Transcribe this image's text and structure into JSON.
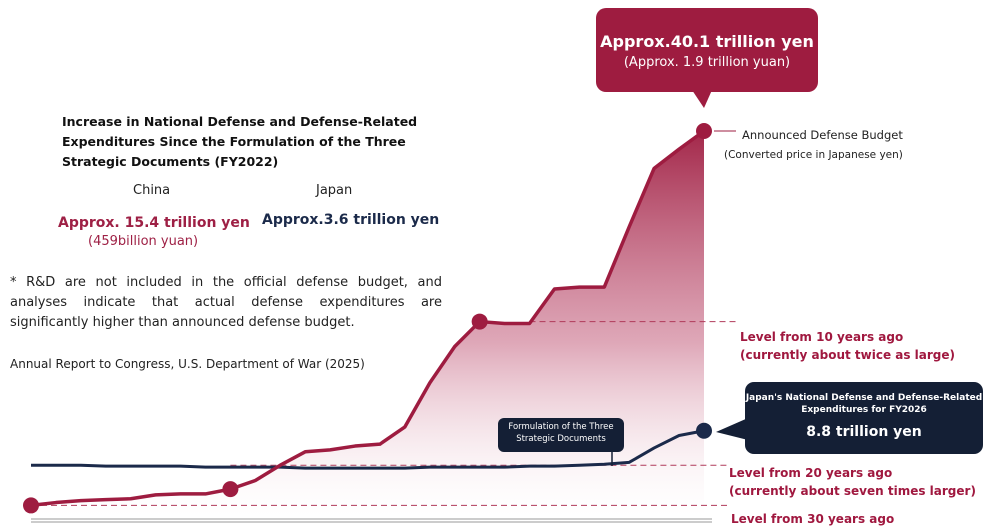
{
  "chart_data": {
    "type": "area",
    "title": "Increase in National Defense and Defense-Related Expenditures Since the Formulation of the Three Strategic Documents (FY2022)",
    "columns": [
      {
        "name": "China",
        "value": "Approx. 15.4 trillion yen",
        "sub": "(459billion yuan)"
      },
      {
        "name": "Japan",
        "value": "Approx.3.6 trillion yen"
      }
    ],
    "note": "* R&D are not included in the official defense budget, and analyses indicate that actual defense expenditures are significantly higher than announced defense budget.",
    "source": "Annual Report to Congress, U.S. Department of War (2025)",
    "series": [
      {
        "name": "Announced Defense Budget",
        "subtitle": "(Converted price in Japanese yen)",
        "color": "#9e1c40",
        "values": [
          1.0,
          1.3,
          1.5,
          1.6,
          1.7,
          2.1,
          2.2,
          2.2,
          2.7,
          3.6,
          5.2,
          6.6,
          6.8,
          7.2,
          7.4,
          9.2,
          13.8,
          17.6,
          20.2,
          20.0,
          20.0,
          23.6,
          23.8,
          23.8,
          30.1,
          36.2,
          38.2,
          40.1
        ]
      },
      {
        "name": "Japan's National Defense and Defense-Related Expenditures",
        "color": "#1b2a4a",
        "values": [
          5.2,
          5.2,
          5.2,
          5.1,
          5.1,
          5.1,
          5.1,
          5.0,
          5.0,
          5.0,
          5.0,
          4.9,
          4.9,
          4.9,
          4.9,
          4.9,
          5.0,
          5.0,
          5.0,
          5.0,
          5.1,
          5.1,
          5.2,
          5.3,
          5.5,
          7.0,
          8.3,
          8.8
        ]
      }
    ],
    "callouts": {
      "china_latest": {
        "main": "Approx.40.1 trillion yen",
        "sub": "(Approx. 1.9 trillion yuan)"
      },
      "japan_latest": {
        "title": "Japan's National Defense and Defense-Related Expenditures for FY2026",
        "value": "8.8 trillion yen"
      },
      "formulation": "Formulation of the Three Strategic Documents"
    },
    "reference_levels": [
      {
        "label": [
          "Level from 10 years ago",
          "(currently about twice as large)"
        ],
        "value": 20.2
      },
      {
        "label": [
          "Level from 20 years ago",
          "(currently about seven times larger)"
        ],
        "value": 5.2
      },
      {
        "label": [
          "Level from 30 years ago"
        ],
        "value": 1.0
      }
    ],
    "grid": false,
    "legend": "inline labels"
  }
}
